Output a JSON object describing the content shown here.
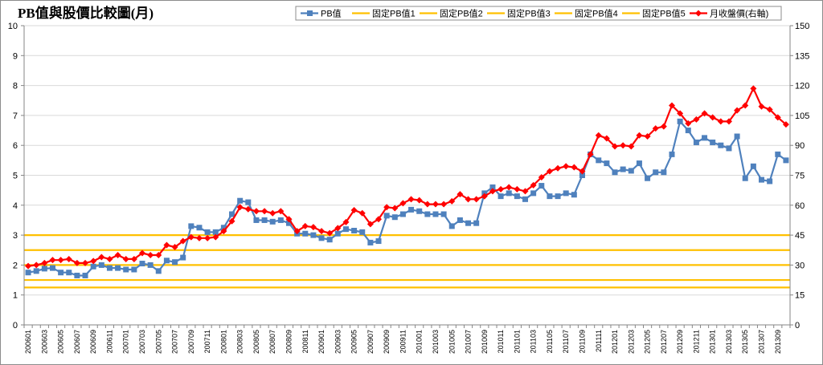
{
  "chart_data": {
    "type": "line",
    "title": "PB值與股價比較圖(月)",
    "grid": true,
    "legend_position": "top-right",
    "y_left": {
      "min": 0,
      "max": 10,
      "ticks": [
        0,
        1,
        2,
        3,
        4,
        5,
        6,
        7,
        8,
        9,
        10
      ]
    },
    "y_right": {
      "min": 0,
      "max": 150,
      "ticks": [
        0,
        15,
        30,
        45,
        60,
        75,
        90,
        105,
        120,
        135,
        150
      ]
    },
    "x_tick_labels": [
      "200601",
      "200603",
      "200605",
      "200607",
      "200609",
      "200611",
      "200701",
      "200703",
      "200705",
      "200707",
      "200709",
      "200711",
      "200801",
      "200803",
      "200805",
      "200807",
      "200809",
      "200811",
      "200901",
      "200903",
      "200905",
      "200907",
      "200909",
      "200911",
      "201001",
      "201003",
      "201005",
      "201007",
      "201009",
      "201011",
      "201101",
      "201103",
      "201105",
      "201107",
      "201109",
      "201111",
      "201201",
      "201203",
      "201205",
      "201207",
      "201209",
      "201211",
      "201301",
      "201303",
      "201305",
      "201307",
      "201309"
    ],
    "pb_values": [
      1.75,
      1.8,
      1.88,
      1.9,
      1.75,
      1.75,
      1.65,
      1.65,
      1.95,
      2.0,
      1.9,
      1.9,
      1.85,
      1.85,
      2.05,
      2.0,
      1.8,
      2.15,
      2.1,
      2.25,
      3.3,
      3.25,
      3.1,
      3.1,
      3.25,
      3.7,
      4.15,
      4.1,
      3.5,
      3.5,
      3.45,
      3.5,
      3.4,
      3.05,
      3.05,
      3.0,
      2.9,
      2.85,
      3.05,
      3.2,
      3.15,
      3.1,
      2.75,
      2.8,
      3.65,
      3.6,
      3.7,
      3.85,
      3.8,
      3.7,
      3.7,
      3.7,
      3.3,
      3.5,
      3.4,
      3.4,
      4.4,
      4.6,
      4.3,
      4.4,
      4.3,
      4.2,
      4.4,
      4.65,
      4.3,
      4.3,
      4.4,
      4.35,
      5.0,
      5.7,
      5.5,
      5.4,
      5.1,
      5.2,
      5.15,
      5.4,
      4.9,
      5.1,
      5.1,
      5.7,
      6.8,
      6.5,
      6.1,
      6.25,
      6.1,
      6.0,
      5.9,
      6.3,
      4.9,
      5.3,
      4.85,
      4.8,
      5.7,
      5.5
    ],
    "price_values": [
      29.5,
      30,
      31,
      32.5,
      32.5,
      33,
      31,
      31,
      32,
      34,
      33,
      35,
      33,
      33,
      36,
      35,
      35,
      40,
      39,
      42,
      44,
      43.5,
      43.5,
      44,
      47,
      52,
      59,
      58,
      57,
      57,
      56,
      57,
      53,
      47,
      49.5,
      49,
      47,
      46,
      48.5,
      51.5,
      57.5,
      56,
      50.5,
      53,
      59,
      58.5,
      61,
      63,
      62.5,
      60.5,
      60.5,
      60.5,
      62,
      65.5,
      63,
      63,
      64.5,
      67,
      68,
      69,
      68,
      67,
      70,
      74,
      77,
      78.5,
      79.5,
      79,
      77,
      85.5,
      95,
      93.5,
      89.5,
      90,
      89.5,
      95,
      94.5,
      98.5,
      99.5,
      110,
      106,
      101,
      103,
      106,
      104,
      102,
      102,
      107.5,
      110,
      118.5,
      109.5,
      108,
      104,
      100.5
    ],
    "fixed_pb": [
      1.25,
      1.5,
      2.0,
      2.5,
      3.0
    ],
    "colors": {
      "pb": "#4f81bd",
      "price": "#ff0000",
      "fixed": "#ffc000",
      "grid": "#d9d9d9",
      "axis": "#868686"
    },
    "legend": [
      "PB值",
      "固定PB值1",
      "固定PB值2",
      "固定PB值3",
      "固定PB值4",
      "固定PB值5",
      "月收盤價(右軸)"
    ]
  }
}
